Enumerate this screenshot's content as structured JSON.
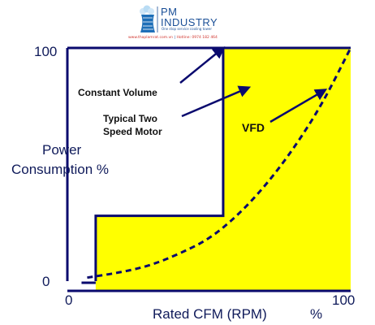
{
  "brand": {
    "name_line1": "PM",
    "name_line2": "INDUSTRY",
    "tagline": "One stop service cooling tower",
    "website": "www.thaplamrat.com.vn",
    "separator": "|",
    "hotline": "Hotline: 0974 182 464"
  },
  "colors": {
    "axis": "#0a0a6e",
    "fill": "#ffff00",
    "arrow": "#0a0a6e",
    "text": "#0f1a5a",
    "brand": "#1a4f97",
    "brand_red": "#d0332c"
  },
  "chart_data": {
    "type": "line",
    "xlabel": "Rated CFM (RPM)",
    "xlabel_unit": "%",
    "ylabel_line1": "Power",
    "ylabel_line2": "Consumption %",
    "xlim": [
      0,
      100
    ],
    "ylim": [
      0,
      100
    ],
    "x_ticks": [
      "0",
      "100"
    ],
    "y_ticks": [
      "0",
      "100"
    ],
    "series": [
      {
        "name": "Constant Volume",
        "style": "solid",
        "x": [
          0,
          100
        ],
        "y": [
          100,
          100
        ]
      },
      {
        "name": "Typical Two Speed Motor",
        "style": "solid",
        "x": [
          10,
          10,
          55,
          55,
          100
        ],
        "y": [
          0,
          28,
          28,
          100,
          100
        ],
        "fill": true
      },
      {
        "name": "VFD",
        "style": "dashed",
        "x": [
          7,
          20,
          30,
          40,
          50,
          60,
          70,
          80,
          90,
          100
        ],
        "y": [
          1.5,
          4,
          7,
          12,
          18,
          28,
          41,
          57,
          76,
          100
        ]
      }
    ],
    "annotations": [
      {
        "text": "Constant Volume",
        "arrow_to": [
          55,
          100
        ]
      },
      {
        "text_line1": "Typical Two",
        "text_line2": "Speed Motor",
        "arrow_to": [
          64,
          83
        ]
      },
      {
        "text": "VFD",
        "arrow_to": [
          91,
          82
        ]
      }
    ]
  }
}
